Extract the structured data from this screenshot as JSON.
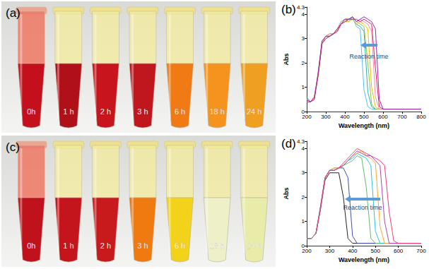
{
  "photos": [
    {
      "label": "(a)",
      "tubes": [
        "0h",
        "1 h",
        "2 h",
        "3 h",
        "6 h",
        "18 h",
        "24 h"
      ],
      "colors": [
        "#c4101c",
        "#b01018",
        "#c8141c",
        "#c0161e",
        "#f07a14",
        "#f4941e",
        "#f0a020"
      ]
    },
    {
      "label": "(c)",
      "tubes": [
        "0h",
        "1 h",
        "2 h",
        "3 h",
        "6 h",
        "18 h",
        "24 h"
      ],
      "colors": [
        "#c0121c",
        "#c4141c",
        "#c81a1c",
        "#ee7a10",
        "#f2d21a",
        "#eef0c8",
        "#e8eca8"
      ]
    }
  ],
  "chart_data": [
    {
      "type": "line",
      "label": "(b)",
      "x_label": "Wavelength (nm)",
      "y_label": "Abs",
      "x": [
        200,
        220,
        240,
        260,
        280,
        300,
        320,
        340,
        360,
        380,
        400,
        420,
        440,
        460,
        480,
        500,
        520,
        540,
        560,
        580,
        600,
        650,
        700,
        750,
        800
      ],
      "xlim": [
        200,
        800
      ],
      "xticks": [
        200,
        300,
        400,
        500,
        600,
        700,
        800
      ],
      "ylim": [
        0,
        4.3
      ],
      "yticks": [
        0,
        1,
        2,
        3,
        4
      ],
      "grid": false,
      "annotations": [
        "Reaction time"
      ],
      "series": [
        {
          "color": "#4fc3f7",
          "values": [
            0.6,
            0.4,
            0.6,
            1.6,
            2.8,
            3.1,
            3.1,
            3.2,
            3.4,
            3.6,
            3.8,
            3.7,
            3.9,
            3.5,
            3.4,
            0.9,
            0.2,
            0.1,
            0.1,
            0.1,
            0.1,
            0.1,
            0.1,
            0.1,
            0.1
          ]
        },
        {
          "color": "#2bb5a0",
          "values": [
            0.5,
            0.4,
            0.6,
            1.5,
            2.8,
            3.0,
            3.1,
            3.2,
            3.3,
            3.6,
            3.7,
            3.8,
            3.8,
            3.6,
            3.5,
            3.3,
            0.8,
            0.2,
            0.1,
            0.1,
            0.1,
            0.1,
            0.1,
            0.1,
            0.1
          ]
        },
        {
          "color": "#8bc34a",
          "values": [
            0.5,
            0.4,
            0.6,
            1.6,
            2.9,
            3.1,
            3.2,
            3.2,
            3.4,
            3.7,
            3.8,
            3.8,
            3.9,
            3.7,
            3.6,
            3.5,
            2.0,
            0.3,
            0.1,
            0.1,
            0.1,
            0.1,
            0.1,
            0.1,
            0.1
          ]
        },
        {
          "color": "#e6c200",
          "values": [
            0.4,
            0.4,
            0.5,
            1.5,
            2.8,
            3.1,
            3.1,
            3.2,
            3.3,
            3.6,
            3.7,
            3.7,
            3.8,
            3.6,
            3.7,
            3.6,
            3.4,
            1.0,
            0.2,
            0.1,
            0.1,
            0.1,
            0.1,
            0.1,
            0.1
          ]
        },
        {
          "color": "#f48fb1",
          "values": [
            0.5,
            0.4,
            0.6,
            1.6,
            2.8,
            3.1,
            3.2,
            3.2,
            3.4,
            3.7,
            3.8,
            3.8,
            3.9,
            3.7,
            3.8,
            3.7,
            3.6,
            3.3,
            0.6,
            0.1,
            0.1,
            0.1,
            0.1,
            0.1,
            0.1
          ]
        },
        {
          "color": "#e91e63",
          "values": [
            0.5,
            0.4,
            0.6,
            1.5,
            2.8,
            3.0,
            3.1,
            3.2,
            3.3,
            3.6,
            3.7,
            3.8,
            3.8,
            3.8,
            3.7,
            3.8,
            3.7,
            3.6,
            1.8,
            0.2,
            0.1,
            0.1,
            0.1,
            0.1,
            0.1
          ]
        },
        {
          "color": "#9c27b0",
          "values": [
            0.4,
            0.4,
            0.5,
            1.6,
            2.9,
            3.1,
            3.1,
            3.2,
            3.4,
            3.6,
            3.8,
            3.8,
            3.9,
            3.7,
            3.8,
            3.9,
            3.8,
            3.7,
            3.4,
            0.5,
            0.1,
            0.1,
            0.1,
            0.1,
            0.1
          ]
        }
      ]
    },
    {
      "type": "line",
      "label": "(d)",
      "x_label": "Wavelength (nm)",
      "y_label": "Abs",
      "x": [
        200,
        220,
        240,
        260,
        280,
        300,
        320,
        340,
        360,
        380,
        400,
        420,
        440,
        460,
        480,
        500,
        520,
        540,
        560,
        580,
        600,
        650,
        700
      ],
      "xlim": [
        200,
        700
      ],
      "xticks": [
        200,
        300,
        400,
        500,
        600,
        700
      ],
      "ylim": [
        0,
        4.3
      ],
      "yticks": [
        0,
        1,
        2,
        3,
        4
      ],
      "grid": false,
      "annotations": [
        "Reaction time"
      ],
      "series": [
        {
          "color": "#222222",
          "values": [
            0.3,
            0.3,
            0.5,
            1.5,
            2.7,
            3.0,
            3.0,
            3.0,
            2.0,
            0.3,
            0.1,
            0.1,
            0.1,
            0.1,
            0.1,
            0.1,
            0.1,
            0.1,
            0.1,
            0.1,
            0.1,
            0.1,
            0.1
          ]
        },
        {
          "color": "#3f51b5",
          "values": [
            0.3,
            0.3,
            0.5,
            1.6,
            2.8,
            3.1,
            3.1,
            3.2,
            3.2,
            2.8,
            0.4,
            0.1,
            0.1,
            0.1,
            0.1,
            0.1,
            0.1,
            0.1,
            0.1,
            0.1,
            0.1,
            0.1,
            0.1
          ]
        },
        {
          "color": "#66bb6a",
          "values": [
            0.3,
            0.3,
            0.5,
            1.6,
            2.8,
            3.1,
            3.2,
            3.2,
            3.3,
            3.4,
            3.5,
            3.7,
            3.6,
            2.4,
            0.3,
            0.1,
            0.1,
            0.1,
            0.1,
            0.1,
            0.1,
            0.1,
            0.1
          ]
        },
        {
          "color": "#26c6da",
          "values": [
            0.3,
            0.3,
            0.5,
            1.5,
            2.8,
            3.1,
            3.1,
            3.2,
            3.3,
            3.5,
            3.6,
            3.8,
            3.7,
            3.6,
            3.3,
            0.6,
            0.1,
            0.1,
            0.1,
            0.1,
            0.1,
            0.1,
            0.1
          ]
        },
        {
          "color": "#ffa726",
          "values": [
            0.3,
            0.3,
            0.5,
            1.6,
            2.8,
            3.1,
            3.2,
            3.2,
            3.3,
            3.5,
            3.7,
            3.8,
            3.9,
            3.7,
            3.6,
            3.4,
            0.8,
            0.1,
            0.1,
            0.1,
            0.1,
            0.1,
            0.1
          ]
        },
        {
          "color": "#ab47bc",
          "values": [
            0.3,
            0.3,
            0.5,
            1.6,
            2.8,
            3.1,
            3.1,
            3.2,
            3.3,
            3.5,
            3.7,
            3.9,
            3.8,
            3.7,
            3.7,
            3.5,
            3.3,
            1.0,
            0.1,
            0.1,
            0.1,
            0.1,
            0.1
          ]
        },
        {
          "color": "#ec407a",
          "values": [
            0.3,
            0.3,
            0.5,
            1.5,
            2.8,
            3.1,
            3.1,
            3.2,
            3.4,
            3.6,
            3.8,
            4.0,
            3.9,
            3.8,
            3.7,
            3.6,
            3.5,
            3.3,
            1.4,
            0.2,
            0.1,
            0.1,
            0.1
          ]
        }
      ]
    }
  ]
}
